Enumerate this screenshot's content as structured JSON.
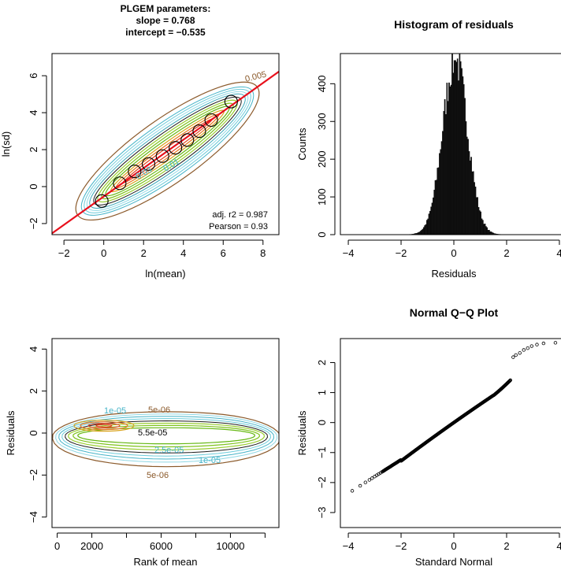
{
  "chart_data": [
    {
      "type": "scatter",
      "title_lines": [
        "PLGEM parameters:",
        "slope = 0.768",
        "intercept = −0.535"
      ],
      "xlabel": "ln(mean)",
      "ylabel": "ln(sd)",
      "xlim": [
        -2.6,
        8.8
      ],
      "ylim": [
        -2.6,
        7.2
      ],
      "xticks": [
        -2,
        0,
        2,
        4,
        6,
        8
      ],
      "yticks": [
        -2,
        0,
        2,
        4,
        6
      ],
      "fit_line": {
        "slope": 0.768,
        "intercept": -0.535,
        "color": "#e8101c"
      },
      "points": [
        {
          "x": -0.1,
          "y": -0.78
        },
        {
          "x": 0.8,
          "y": 0.18
        },
        {
          "x": 1.55,
          "y": 0.82
        },
        {
          "x": 2.25,
          "y": 1.22
        },
        {
          "x": 2.95,
          "y": 1.65
        },
        {
          "x": 3.6,
          "y": 2.1
        },
        {
          "x": 4.2,
          "y": 2.52
        },
        {
          "x": 4.8,
          "y": 3.0
        },
        {
          "x": 5.4,
          "y": 3.6
        },
        {
          "x": 6.4,
          "y": 4.6
        }
      ],
      "contour_labels": [
        "0.005",
        "0.03",
        "0.01"
      ],
      "annotations": [
        "adj. r2 = 0.987",
        "Pearson = 0.93"
      ]
    },
    {
      "type": "bar",
      "title": "Histogram of residuals",
      "xlabel": "Residuals",
      "ylabel": "Counts",
      "xlim": [
        -4.3,
        4.3
      ],
      "ylim": [
        0,
        480
      ],
      "xticks": [
        -4,
        -2,
        0,
        2,
        4
      ],
      "yticks": [
        0,
        100,
        200,
        300,
        400
      ],
      "bin_width": 0.04,
      "bin_range": [
        -3.6,
        2.8
      ],
      "peak_count": 462,
      "peak_center": 0.05,
      "sd": 0.47
    },
    {
      "type": "line",
      "title": "",
      "xlabel": "Rank of mean",
      "ylabel": "Residuals",
      "xlim": [
        -300,
        12800
      ],
      "ylim": [
        -4.5,
        4.5
      ],
      "xticks": [
        0,
        2000,
        6000,
        10000
      ],
      "xminor": [
        4000,
        8000,
        12000
      ],
      "yticks": [
        -4,
        -2,
        0,
        2,
        4
      ],
      "contour_labels": [
        "1e-05",
        "5e-06",
        "5.5e-05",
        "2.5e-05",
        "1e-05",
        "5e-06"
      ]
    },
    {
      "type": "scatter",
      "title": "Normal Q−Q Plot",
      "xlabel": "Standard Normal",
      "ylabel": "Residuals",
      "xlim": [
        -4.3,
        4.3
      ],
      "ylim": [
        -3.5,
        2.8
      ],
      "xticks": [
        -4,
        -2,
        0,
        2,
        4
      ],
      "yticks": [
        -3,
        -2,
        -1,
        0,
        1,
        2
      ],
      "x_range": [
        -3.85,
        3.85
      ],
      "y_range": [
        -3.35,
        2.65
      ]
    }
  ]
}
